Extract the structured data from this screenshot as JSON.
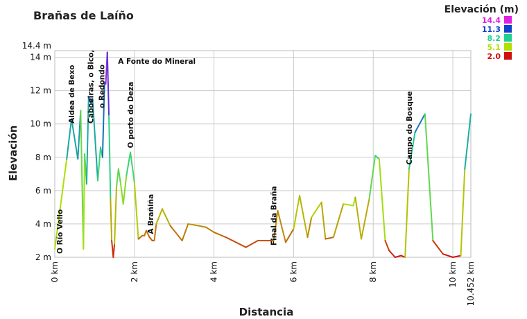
{
  "chart_data": {
    "type": "line",
    "title": "Brañas de Laíño",
    "xlabel": "Distancia",
    "ylabel": "Elevación",
    "xlim": [
      0,
      10.452
    ],
    "ylim": [
      2,
      14.4
    ],
    "x_ticks": [
      {
        "value": 0,
        "label": "0 km"
      },
      {
        "value": 2,
        "label": "2 km"
      },
      {
        "value": 4,
        "label": "4 km"
      },
      {
        "value": 6,
        "label": "6 km"
      },
      {
        "value": 8,
        "label": "8 km"
      },
      {
        "value": 10,
        "label": "10 km"
      },
      {
        "value": 10.452,
        "label": "10.452 km"
      }
    ],
    "y_ticks": [
      {
        "value": 2,
        "label": "2 m"
      },
      {
        "value": 4,
        "label": "4 m"
      },
      {
        "value": 6,
        "label": "6 m"
      },
      {
        "value": 8,
        "label": "8 m"
      },
      {
        "value": 10,
        "label": "10 m"
      },
      {
        "value": 12,
        "label": "12 m"
      },
      {
        "value": 14,
        "label": "14 m"
      },
      {
        "value": 14.4,
        "label": "14.4 m"
      }
    ],
    "grid": true,
    "legend": {
      "title": "Elevación (m)",
      "placement": "top-right",
      "entries": [
        {
          "label": "14.4",
          "color": "#e020e0"
        },
        {
          "label": "11.3",
          "color": "#1040d0"
        },
        {
          "label": "8.2",
          "color": "#20d090"
        },
        {
          "label": "5.1",
          "color": "#b0e000"
        },
        {
          "label": "2.0",
          "color": "#d01010"
        }
      ]
    },
    "x": [
      0,
      0.3,
      0.42,
      0.58,
      0.65,
      0.72,
      0.75,
      0.8,
      0.85,
      0.9,
      0.95,
      1.08,
      1.15,
      1.2,
      1.25,
      1.28,
      1.32,
      1.36,
      1.4,
      1.43,
      1.47,
      1.5,
      1.55,
      1.6,
      1.65,
      1.72,
      1.8,
      1.9,
      2.0,
      2.1,
      2.2,
      2.25,
      2.3,
      2.38,
      2.45,
      2.5,
      2.55,
      2.7,
      2.9,
      3.2,
      3.35,
      3.6,
      3.8,
      4.0,
      4.3,
      4.8,
      5.1,
      5.5,
      5.6,
      5.8,
      6.0,
      6.15,
      6.35,
      6.45,
      6.7,
      6.8,
      7.0,
      7.25,
      7.5,
      7.55,
      7.7,
      7.9,
      8.05,
      8.15,
      8.3,
      8.4,
      8.55,
      8.7,
      8.8,
      8.9,
      9.05,
      9.3,
      9.5,
      9.75,
      10.0,
      10.2,
      10.3,
      10.452
    ],
    "y": [
      2.5,
      7.9,
      10.3,
      7.9,
      10.8,
      2.5,
      8.2,
      6.4,
      11.6,
      11.3,
      11.5,
      6.6,
      8.6,
      8.0,
      12.5,
      12.4,
      14.3,
      10.5,
      5.5,
      3.0,
      2.0,
      2.8,
      6.2,
      7.3,
      6.5,
      5.2,
      6.9,
      8.3,
      6.5,
      3.1,
      3.3,
      3.3,
      3.6,
      3.2,
      3.0,
      3.0,
      4.0,
      4.9,
      3.9,
      3.0,
      4.0,
      3.9,
      3.8,
      3.5,
      3.2,
      2.6,
      3.0,
      3.0,
      4.8,
      2.9,
      3.7,
      5.7,
      3.2,
      4.4,
      5.3,
      3.1,
      3.2,
      5.2,
      5.1,
      5.6,
      3.1,
      5.5,
      8.1,
      7.9,
      3.0,
      2.4,
      2.0,
      2.1,
      2.0,
      7.3,
      9.5,
      10.6,
      3.0,
      2.2,
      2.0,
      2.1,
      7.3,
      10.6
    ],
    "annotations": [
      {
        "label": "O Río Vello",
        "x": 0.12
      },
      {
        "label": "Aldea de Bexo",
        "x": 0.42
      },
      {
        "label": "Caboeiras, o Bico,",
        "x": 0.9
      },
      {
        "label": "o Redondo",
        "x": 1.18
      },
      {
        "label": "A Fonte do Mineral",
        "x": 1.45
      },
      {
        "label": "O porto do Deza",
        "x": 1.9
      },
      {
        "label": "A Brañiña",
        "x": 2.4
      },
      {
        "label": "Final da Braña",
        "x": 5.5
      },
      {
        "label": "Campo do Bosque",
        "x": 8.9
      }
    ]
  }
}
